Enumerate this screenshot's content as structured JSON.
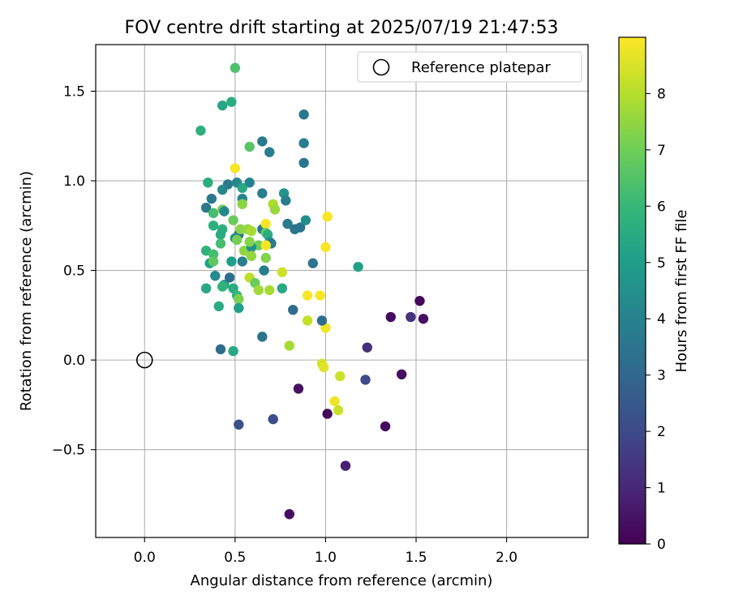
{
  "chart_data": {
    "type": "scatter",
    "title": "FOV centre drift starting at 2025/07/19 21:47:53",
    "xlabel": "Angular distance from reference (arcmin)",
    "ylabel": "Rotation from reference (arcmin)",
    "xlim": [
      -0.27,
      2.45
    ],
    "ylim": [
      -0.99,
      1.76
    ],
    "xticks": [
      0.0,
      0.5,
      1.0,
      1.5,
      2.0
    ],
    "xtick_labels": [
      "0.0",
      "0.5",
      "1.0",
      "1.5",
      "2.0"
    ],
    "yticks": [
      -0.5,
      0.0,
      0.5,
      1.0,
      1.5
    ],
    "ytick_labels": [
      "−0.5",
      "0.0",
      "0.5",
      "1.0",
      "1.5"
    ],
    "grid": true,
    "legend": {
      "placement": "upper-right",
      "entries": [
        "Reference platepar"
      ]
    },
    "reference_point": {
      "label": "Reference platepar",
      "x": 0.0,
      "y": 0.0,
      "marker": "open-circle"
    },
    "colorbar": {
      "label": "Hours from first FF file",
      "colormap": "viridis",
      "range": [
        0,
        9
      ],
      "ticks": [
        0,
        1,
        2,
        3,
        4,
        5,
        6,
        7,
        8
      ],
      "tick_labels": [
        "0",
        "1",
        "2",
        "3",
        "4",
        "5",
        "6",
        "7",
        "8"
      ]
    },
    "colormap_stops": [
      "#440154",
      "#482878",
      "#3e4a89",
      "#31688e",
      "#26828e",
      "#1f9e89",
      "#35b779",
      "#6ece58",
      "#b5de2b",
      "#fde725"
    ],
    "points": [
      {
        "x": 1.52,
        "y": 0.33,
        "c": 0.2
      },
      {
        "x": 1.36,
        "y": 0.24,
        "c": 0.3
      },
      {
        "x": 1.54,
        "y": 0.23,
        "c": 0.4
      },
      {
        "x": 1.47,
        "y": 0.24,
        "c": 1.3
      },
      {
        "x": 1.42,
        "y": -0.08,
        "c": 0.3
      },
      {
        "x": 1.22,
        "y": -0.11,
        "c": 2.0
      },
      {
        "x": 1.23,
        "y": 0.07,
        "c": 1.2
      },
      {
        "x": 1.33,
        "y": -0.37,
        "c": 0.3
      },
      {
        "x": 1.01,
        "y": -0.3,
        "c": 0.2
      },
      {
        "x": 0.85,
        "y": -0.16,
        "c": 0.4
      },
      {
        "x": 1.11,
        "y": -0.59,
        "c": 0.8
      },
      {
        "x": 0.8,
        "y": -0.86,
        "c": 0.3
      },
      {
        "x": 0.71,
        "y": -0.33,
        "c": 2.1
      },
      {
        "x": 0.52,
        "y": -0.36,
        "c": 2.2
      },
      {
        "x": 0.9,
        "y": 0.36,
        "c": 8.9
      },
      {
        "x": 0.97,
        "y": 0.36,
        "c": 8.9
      },
      {
        "x": 0.9,
        "y": 0.22,
        "c": 8.2
      },
      {
        "x": 1.0,
        "y": 0.18,
        "c": 8.8
      },
      {
        "x": 0.98,
        "y": -0.02,
        "c": 8.4
      },
      {
        "x": 0.99,
        "y": -0.04,
        "c": 8.6
      },
      {
        "x": 1.08,
        "y": -0.09,
        "c": 8.3
      },
      {
        "x": 1.05,
        "y": -0.23,
        "c": 8.8
      },
      {
        "x": 1.07,
        "y": -0.28,
        "c": 8.3
      },
      {
        "x": 1.01,
        "y": 0.8,
        "c": 8.9
      },
      {
        "x": 1.0,
        "y": 0.63,
        "c": 8.9
      },
      {
        "x": 0.8,
        "y": 0.08,
        "c": 7.8
      },
      {
        "x": 0.82,
        "y": 0.28,
        "c": 3.1
      },
      {
        "x": 0.98,
        "y": 0.22,
        "c": 3.2
      },
      {
        "x": 0.93,
        "y": 0.54,
        "c": 3.5
      },
      {
        "x": 1.18,
        "y": 0.52,
        "c": 5.1
      },
      {
        "x": 0.65,
        "y": 0.13,
        "c": 3.5
      },
      {
        "x": 0.42,
        "y": 0.06,
        "c": 3.2
      },
      {
        "x": 0.49,
        "y": 0.05,
        "c": 5.4
      },
      {
        "x": 0.5,
        "y": 1.63,
        "c": 6.4
      },
      {
        "x": 0.48,
        "y": 1.44,
        "c": 5.6
      },
      {
        "x": 0.43,
        "y": 1.42,
        "c": 5.3
      },
      {
        "x": 0.31,
        "y": 1.28,
        "c": 5.7
      },
      {
        "x": 0.58,
        "y": 1.19,
        "c": 6.6
      },
      {
        "x": 0.65,
        "y": 1.22,
        "c": 3.7
      },
      {
        "x": 0.69,
        "y": 1.16,
        "c": 3.9
      },
      {
        "x": 0.88,
        "y": 1.37,
        "c": 3.6
      },
      {
        "x": 0.88,
        "y": 1.21,
        "c": 3.8
      },
      {
        "x": 0.88,
        "y": 1.1,
        "c": 3.5
      },
      {
        "x": 0.5,
        "y": 1.07,
        "c": 8.9
      },
      {
        "x": 0.35,
        "y": 0.99,
        "c": 5.6
      },
      {
        "x": 0.46,
        "y": 0.98,
        "c": 3.7
      },
      {
        "x": 0.51,
        "y": 0.99,
        "c": 4.2
      },
      {
        "x": 0.58,
        "y": 0.99,
        "c": 4.0
      },
      {
        "x": 0.37,
        "y": 0.9,
        "c": 3.6
      },
      {
        "x": 0.43,
        "y": 0.95,
        "c": 4.2
      },
      {
        "x": 0.54,
        "y": 0.96,
        "c": 5.4
      },
      {
        "x": 0.54,
        "y": 0.9,
        "c": 4.0
      },
      {
        "x": 0.65,
        "y": 0.93,
        "c": 3.9
      },
      {
        "x": 0.77,
        "y": 0.93,
        "c": 4.6
      },
      {
        "x": 0.78,
        "y": 0.89,
        "c": 3.8
      },
      {
        "x": 0.34,
        "y": 0.85,
        "c": 3.6
      },
      {
        "x": 0.38,
        "y": 0.82,
        "c": 6.3
      },
      {
        "x": 0.43,
        "y": 0.84,
        "c": 7.2
      },
      {
        "x": 0.44,
        "y": 0.83,
        "c": 4.2
      },
      {
        "x": 0.54,
        "y": 0.87,
        "c": 7.4
      },
      {
        "x": 0.71,
        "y": 0.87,
        "c": 7.9
      },
      {
        "x": 0.72,
        "y": 0.84,
        "c": 7.6
      },
      {
        "x": 0.38,
        "y": 0.75,
        "c": 5.7
      },
      {
        "x": 0.43,
        "y": 0.73,
        "c": 5.7
      },
      {
        "x": 0.42,
        "y": 0.7,
        "c": 5.5
      },
      {
        "x": 0.49,
        "y": 0.78,
        "c": 6.9
      },
      {
        "x": 0.52,
        "y": 0.7,
        "c": 3.6
      },
      {
        "x": 0.53,
        "y": 0.73,
        "c": 7.4
      },
      {
        "x": 0.57,
        "y": 0.73,
        "c": 7.5
      },
      {
        "x": 0.59,
        "y": 0.72,
        "c": 7.8
      },
      {
        "x": 0.63,
        "y": 0.64,
        "c": 7.0
      },
      {
        "x": 0.65,
        "y": 0.73,
        "c": 3.8
      },
      {
        "x": 0.67,
        "y": 0.76,
        "c": 8.9
      },
      {
        "x": 0.67,
        "y": 0.71,
        "c": 6.9
      },
      {
        "x": 0.68,
        "y": 0.7,
        "c": 5.6
      },
      {
        "x": 0.69,
        "y": 0.66,
        "c": 4.9
      },
      {
        "x": 0.7,
        "y": 0.65,
        "c": 3.7
      },
      {
        "x": 0.67,
        "y": 0.64,
        "c": 8.9
      },
      {
        "x": 0.79,
        "y": 0.76,
        "c": 3.7
      },
      {
        "x": 0.83,
        "y": 0.73,
        "c": 3.5
      },
      {
        "x": 0.86,
        "y": 0.74,
        "c": 3.4
      },
      {
        "x": 0.89,
        "y": 0.78,
        "c": 4.4
      },
      {
        "x": 0.42,
        "y": 0.65,
        "c": 6.3
      },
      {
        "x": 0.5,
        "y": 0.68,
        "c": 4.4
      },
      {
        "x": 0.51,
        "y": 0.67,
        "c": 7.1
      },
      {
        "x": 0.55,
        "y": 0.61,
        "c": 7.4
      },
      {
        "x": 0.58,
        "y": 0.6,
        "c": 7.6
      },
      {
        "x": 0.59,
        "y": 0.63,
        "c": 4.6
      },
      {
        "x": 0.59,
        "y": 0.58,
        "c": 7.5
      },
      {
        "x": 0.58,
        "y": 0.66,
        "c": 7.3
      },
      {
        "x": 0.34,
        "y": 0.61,
        "c": 5.8
      },
      {
        "x": 0.38,
        "y": 0.59,
        "c": 6.3
      },
      {
        "x": 0.36,
        "y": 0.54,
        "c": 5.2
      },
      {
        "x": 0.38,
        "y": 0.55,
        "c": 6.7
      },
      {
        "x": 0.48,
        "y": 0.55,
        "c": 5.0
      },
      {
        "x": 0.54,
        "y": 0.55,
        "c": 3.8
      },
      {
        "x": 0.67,
        "y": 0.57,
        "c": 7.3
      },
      {
        "x": 0.66,
        "y": 0.5,
        "c": 7.5
      },
      {
        "x": 0.66,
        "y": 0.5,
        "c": 3.9
      },
      {
        "x": 0.76,
        "y": 0.49,
        "c": 8.3
      },
      {
        "x": 0.39,
        "y": 0.47,
        "c": 4.3
      },
      {
        "x": 0.44,
        "y": 0.42,
        "c": 5.1
      },
      {
        "x": 0.43,
        "y": 0.41,
        "c": 5.8
      },
      {
        "x": 0.47,
        "y": 0.46,
        "c": 3.2
      },
      {
        "x": 0.49,
        "y": 0.4,
        "c": 5.5
      },
      {
        "x": 0.58,
        "y": 0.46,
        "c": 8.1
      },
      {
        "x": 0.61,
        "y": 0.43,
        "c": 6.9
      },
      {
        "x": 0.63,
        "y": 0.39,
        "c": 7.7
      },
      {
        "x": 0.69,
        "y": 0.39,
        "c": 7.8
      },
      {
        "x": 0.76,
        "y": 0.4,
        "c": 5.4
      },
      {
        "x": 0.34,
        "y": 0.4,
        "c": 5.4
      },
      {
        "x": 0.51,
        "y": 0.36,
        "c": 5.9
      },
      {
        "x": 0.52,
        "y": 0.34,
        "c": 7.2
      },
      {
        "x": 0.41,
        "y": 0.3,
        "c": 5.5
      },
      {
        "x": 0.52,
        "y": 0.29,
        "c": 5.1
      }
    ]
  }
}
